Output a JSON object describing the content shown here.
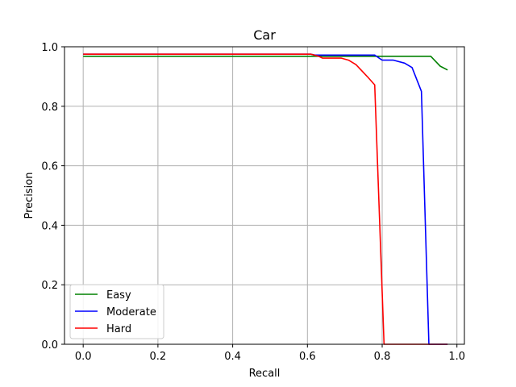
{
  "chart_data": {
    "type": "line",
    "title": "Car",
    "xlabel": "Recall",
    "ylabel": "Precision",
    "xlim": [
      -0.05,
      1.02
    ],
    "ylim": [
      0.0,
      1.0
    ],
    "xticks": [
      0.0,
      0.2,
      0.4,
      0.6,
      0.8,
      1.0
    ],
    "xtick_labels": [
      "0.0",
      "0.2",
      "0.4",
      "0.6",
      "0.8",
      "1.0"
    ],
    "yticks": [
      0.0,
      0.2,
      0.4,
      0.6,
      0.8,
      1.0
    ],
    "ytick_labels": [
      "0.0",
      "0.2",
      "0.4",
      "0.6",
      "0.8",
      "1.0"
    ],
    "grid": true,
    "legend_position": "lower-left",
    "series": [
      {
        "name": "Easy",
        "color": "#008000",
        "x": [
          0.0,
          0.6,
          0.8,
          0.85,
          0.9,
          0.93,
          0.955,
          0.975
        ],
        "y": [
          0.968,
          0.968,
          0.968,
          0.968,
          0.968,
          0.968,
          0.935,
          0.922
        ]
      },
      {
        "name": "Moderate",
        "color": "#0000ff",
        "x": [
          0.0,
          0.61,
          0.62,
          0.78,
          0.8,
          0.83,
          0.86,
          0.88,
          0.905,
          0.925,
          0.93,
          0.975
        ],
        "y": [
          0.975,
          0.975,
          0.972,
          0.972,
          0.955,
          0.955,
          0.945,
          0.93,
          0.85,
          0.0,
          0.0,
          0.0
        ]
      },
      {
        "name": "Hard",
        "color": "#ff0000",
        "x": [
          0.0,
          0.61,
          0.63,
          0.64,
          0.69,
          0.71,
          0.73,
          0.76,
          0.78,
          0.805,
          0.81,
          0.975
        ],
        "y": [
          0.975,
          0.975,
          0.968,
          0.962,
          0.962,
          0.955,
          0.94,
          0.9,
          0.872,
          0.0,
          0.0,
          0.0
        ]
      }
    ]
  }
}
